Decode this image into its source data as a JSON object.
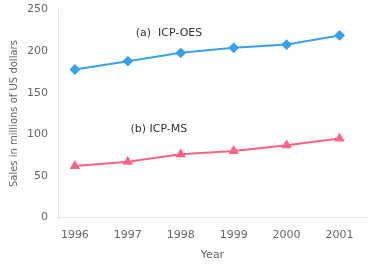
{
  "chart_data": {
    "type": "line",
    "x": [
      1996,
      1997,
      1998,
      1999,
      2000,
      2001
    ],
    "series": [
      {
        "values": [
          178,
          188,
          198,
          204,
          208,
          219
        ],
        "marker": "diamond"
      },
      {
        "values": [
          62,
          67,
          76,
          80,
          87,
          95
        ],
        "marker": "triangle"
      }
    ],
    "xlabel": "Year",
    "ylabel": "Sales in millions of US dollars",
    "xlim": [
      1995.7,
      2001.5
    ],
    "xticks": [
      1996,
      1997,
      1998,
      1999,
      2000,
      2001
    ],
    "ylim": [
      0,
      250
    ],
    "yticks": [
      0,
      50,
      100,
      150,
      200,
      250
    ],
    "grid": false,
    "annotations": [
      {
        "text": "(a)  ICP-OES",
        "x": 1997.15,
        "y": 215
      },
      {
        "text": "(b) ICP-MS",
        "x": 1997.05,
        "y": 100
      }
    ]
  }
}
